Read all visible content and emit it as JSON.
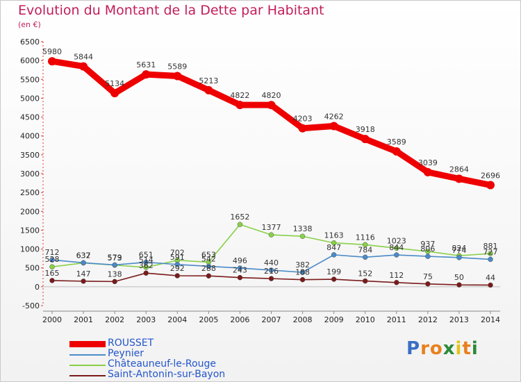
{
  "header": {
    "title": "Evolution du Montant de la Dette par Habitant",
    "unit": "(en €)"
  },
  "brand": {
    "letters": [
      "P",
      "r",
      "o",
      "x",
      "i",
      "t",
      "i"
    ],
    "colors": [
      "#3a6fc4",
      "#e8801e",
      "#e8801e",
      "#2a8a3a",
      "#e3c41a",
      "#e8801e",
      "#2a8a3a"
    ]
  },
  "chart_data": {
    "type": "line",
    "x": [
      "2000",
      "2001",
      "2002",
      "2003",
      "2004",
      "2005",
      "2006",
      "2007",
      "2008",
      "2009",
      "2010",
      "2011",
      "2012",
      "2013",
      "2014"
    ],
    "ylim": [
      -500,
      6500
    ],
    "yticks": [
      "-500",
      "0",
      "500",
      "1000",
      "1500",
      "2000",
      "2500",
      "3000",
      "3500",
      "4000",
      "4500",
      "5000",
      "5500",
      "6000",
      "6500"
    ],
    "grid": false,
    "legend_position": "bottom-left",
    "series": [
      {
        "name": "ROUSSET",
        "color": "#ee0000",
        "values": [
          5980,
          5844,
          5134,
          5631,
          5589,
          5213,
          4822,
          4820,
          4203,
          4262,
          3918,
          3589,
          3039,
          2864,
          2696
        ],
        "labels": [
          "5980",
          "5844",
          "5134",
          "5631",
          "5589",
          "5213",
          "4822",
          "4820",
          "4203",
          "4262",
          "3918",
          "3589",
          "3039",
          "2864",
          "2696"
        ]
      },
      {
        "name": "Peynier",
        "color": "#4a8ac8",
        "values": [
          712,
          637,
          579,
          651,
          591,
          542,
          496,
          440,
          382,
          847,
          784,
          844,
          806,
          774,
          727
        ],
        "labels": [
          "712",
          "637",
          "579",
          "651",
          "591",
          "542",
          "496",
          "440",
          "382",
          "847",
          "784",
          "844",
          "806",
          "774",
          "727"
        ]
      },
      {
        "name": "Châteauneuf-le-Rouge",
        "color": "#88d048",
        "values": [
          528,
          632,
          573,
          514,
          702,
          653,
          1652,
          1377,
          1338,
          1163,
          1116,
          1023,
          937,
          824,
          881
        ],
        "labels": [
          "528",
          "632",
          "573",
          "514",
          "702",
          "653",
          "1652",
          "1377",
          "1338",
          "1163",
          "1116",
          "1023",
          "937",
          "824",
          "881"
        ]
      },
      {
        "name": "Saint-Antonin-sur-Bayon",
        "color": "#7a1a1a",
        "values": [
          165,
          147,
          138,
          362,
          292,
          288,
          243,
          216,
          188,
          199,
          152,
          112,
          75,
          50,
          44
        ],
        "labels": [
          "165",
          "147",
          "138",
          "362",
          "292",
          "288",
          "243",
          "216",
          "188",
          "199",
          "152",
          "112",
          "75",
          "50",
          "44"
        ]
      }
    ]
  }
}
